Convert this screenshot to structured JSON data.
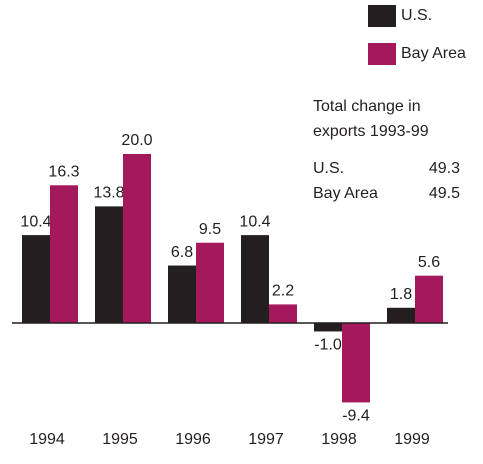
{
  "chart_data": {
    "type": "bar",
    "categories": [
      "1994",
      "1995",
      "1996",
      "1997",
      "1998",
      "1999"
    ],
    "series": [
      {
        "name": "U.S.",
        "color": "#231f20",
        "values": [
          10.4,
          13.8,
          6.8,
          10.4,
          -1.0,
          1.8
        ],
        "value_labels": [
          "10.4",
          "13.8",
          "6.8",
          "10.4",
          "-1.0",
          "1.8"
        ]
      },
      {
        "name": "Bay Area",
        "color": "#a3195b",
        "values": [
          16.3,
          20.0,
          9.5,
          2.2,
          -9.4,
          5.6
        ],
        "value_labels": [
          "16.3",
          "20.0",
          "9.5",
          "2.2",
          "-9.4",
          "5.6"
        ]
      }
    ],
    "legend": "top-right",
    "annotation": {
      "lines": [
        "Total change in",
        "exports 1993-99"
      ],
      "rows": [
        {
          "label": "U.S.",
          "value": 49.3
        },
        {
          "label": "Bay Area",
          "value": 49.5
        }
      ]
    }
  }
}
